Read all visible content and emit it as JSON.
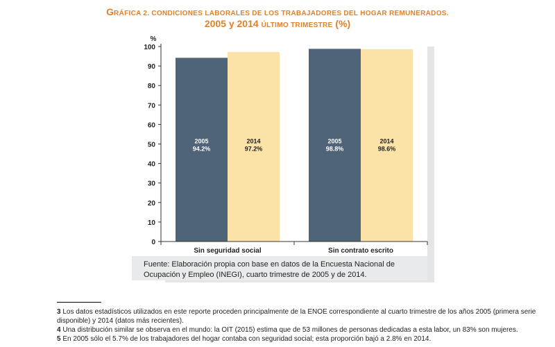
{
  "title": {
    "line1_first": "G",
    "line1_rest": "ráfica 2. Condiciones laborales de los trabajadores del hogar remunerados.",
    "line2_main": "2005 y 2014 ",
    "line2_small": "último trimestre",
    "line2_end": " (%)"
  },
  "chart_data": {
    "type": "bar",
    "title": "Gráfica 2. Condiciones laborales de los trabajadores del hogar remunerados. 2005 y 2014 último trimestre (%)",
    "ylabel": "%",
    "ylim": [
      0,
      100
    ],
    "yticks": [
      0,
      10,
      20,
      30,
      40,
      50,
      60,
      70,
      80,
      90,
      100
    ],
    "categories": [
      "Sin seguridad social",
      "Sin contrato escrito"
    ],
    "series": [
      {
        "name": "2005",
        "values": [
          94.2,
          98.8
        ],
        "labels": [
          "94.2%",
          "98.8%"
        ],
        "color": "#4f6379",
        "label_color": "#ffffff"
      },
      {
        "name": "2014",
        "values": [
          97.2,
          98.6
        ],
        "labels": [
          "97.2%",
          "98.6%"
        ],
        "color": "#fbe3a7",
        "label_color": "#222222"
      }
    ],
    "grid": false,
    "legend": "none"
  },
  "source": "Fuente: Elaboración propia con base en datos de la Encuesta Nacional de Ocupación y Empleo (INEGI), cuarto trimestre de 2005 y de 2014.",
  "footnotes": [
    {
      "num": "3",
      "text": " Los datos estadísticos utilizados en este reporte proceden principalmente de la ENOE correspondiente al cuarto trimestre de los años 2005 (primera serie disponible) y 2014 (datos más recientes)."
    },
    {
      "num": "4",
      "text": " Una distribución similar se observa en el mundo: la OIT (2015) estima que de 53 millones de personas dedicadas a esta labor, un 83% son mujeres."
    },
    {
      "num": "5",
      "text": "  En 2005 sólo el 5.7% de los trabajadores del hogar contaba con seguridad social; esta proporción bajó a 2.8% en 2014."
    }
  ],
  "colors": {
    "title": "#e0812a",
    "bar_2005": "#4f6379",
    "bar_2014": "#fbe3a7",
    "source_box": "#e8eaeb"
  }
}
